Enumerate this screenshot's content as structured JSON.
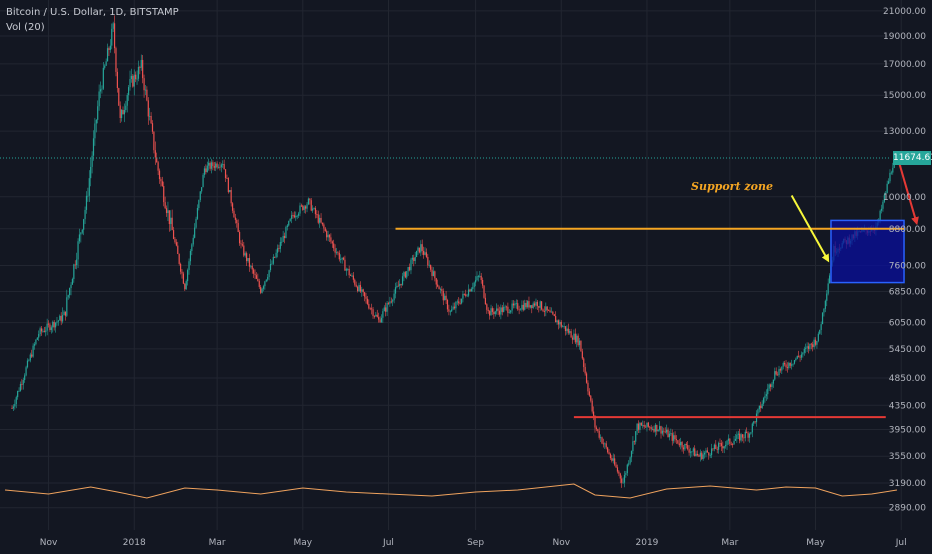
{
  "header": {
    "title": "Bitcoin / U.S. Dollar, 1D, BITSTAMP",
    "volume_label": "Vol (20)"
  },
  "price_badge": "11674.63",
  "annotation": {
    "support_label": "Support zone"
  },
  "colors": {
    "background": "#131722",
    "grid": "#222631",
    "up": "#26a69a",
    "down": "#ef5350",
    "support_line": "#f5a623",
    "resistance_line": "#e53935",
    "zone_fill": "#0a0f9e",
    "zone_border": "#2962ff",
    "arrow_yellow": "#f7f73a",
    "arrow_red": "#e53935",
    "volume_ma": "#f0a35e"
  },
  "chart_data": {
    "type": "candlestick",
    "y_scale": "log",
    "y_ticks": [
      21000,
      19000,
      17000,
      15000,
      13000,
      11674.63,
      10000,
      8800,
      7600,
      6850,
      6050,
      5450,
      4850,
      4350,
      3950,
      3550,
      3190,
      2890
    ],
    "y_tick_labels": [
      "21000.00",
      "19000.00",
      "17000.00",
      "15000.00",
      "13000.00",
      "11674.63",
      "10000.00",
      "8800.00",
      "7600.00",
      "6850.00",
      "6050.00",
      "5450.00",
      "4850.00",
      "4350.00",
      "3950.00",
      "3550.00",
      "3190.00",
      "2890.00"
    ],
    "x_ticks": [
      "Nov",
      "2018",
      "Mar",
      "May",
      "Jul",
      "Sep",
      "Nov",
      "2019",
      "Mar",
      "May",
      "Jul"
    ],
    "series": [
      {
        "dates": [
          "2017-10-06",
          "2017-10-25",
          "2017-11-12",
          "2017-11-28",
          "2017-12-07",
          "2017-12-17",
          "2017-12-22",
          "2017-12-28",
          "2018-01-06",
          "2018-01-17",
          "2018-02-06",
          "2018-02-20",
          "2018-03-05",
          "2018-03-18",
          "2018-04-01",
          "2018-04-24",
          "2018-05-05",
          "2018-06-01",
          "2018-06-24",
          "2018-07-24",
          "2018-08-14",
          "2018-09-04",
          "2018-09-10",
          "2018-10-15",
          "2018-11-14",
          "2018-11-25",
          "2018-12-15",
          "2018-12-25",
          "2019-01-09",
          "2019-02-07",
          "2019-03-15",
          "2019-04-02",
          "2019-04-20",
          "2019-05-03",
          "2019-05-14",
          "2019-05-30",
          "2019-06-14",
          "2019-06-26"
        ],
        "close": [
          4300,
          5800,
          6200,
          9800,
          15000,
          19600,
          13500,
          15500,
          16800,
          11400,
          7000,
          11200,
          11500,
          8200,
          6900,
          9300,
          9800,
          7500,
          6100,
          8200,
          6300,
          7300,
          6300,
          6550,
          5600,
          4000,
          3200,
          4000,
          3980,
          3550,
          3900,
          4950,
          5300,
          5700,
          8100,
          8600,
          8900,
          11674.63
        ]
      }
    ],
    "volume_ma_series": [
      {
        "dates": [
          "2017-10-01",
          "2017-11-01",
          "2017-12-01",
          "2017-12-20",
          "2018-01-10",
          "2018-02-06",
          "2018-03-01",
          "2018-04-01",
          "2018-05-01",
          "2018-06-01",
          "2018-07-01",
          "2018-08-01",
          "2018-09-01",
          "2018-10-01",
          "2018-11-10",
          "2018-11-25",
          "2018-12-20",
          "2019-01-15",
          "2019-02-15",
          "2019-03-20",
          "2019-04-10",
          "2019-05-01",
          "2019-05-20",
          "2019-06-10",
          "2019-06-28"
        ],
        "values": [
          30,
          26,
          33,
          28,
          22,
          32,
          30,
          26,
          32,
          28,
          26,
          24,
          28,
          30,
          36,
          25,
          22,
          31,
          34,
          30,
          33,
          32,
          24,
          26,
          30
        ]
      }
    ],
    "annotations": {
      "support_line_price": 8800,
      "resistance_line_price": 4150,
      "zone_top": 9100,
      "zone_bottom": 7100,
      "current_price_line": 11674.63
    }
  }
}
